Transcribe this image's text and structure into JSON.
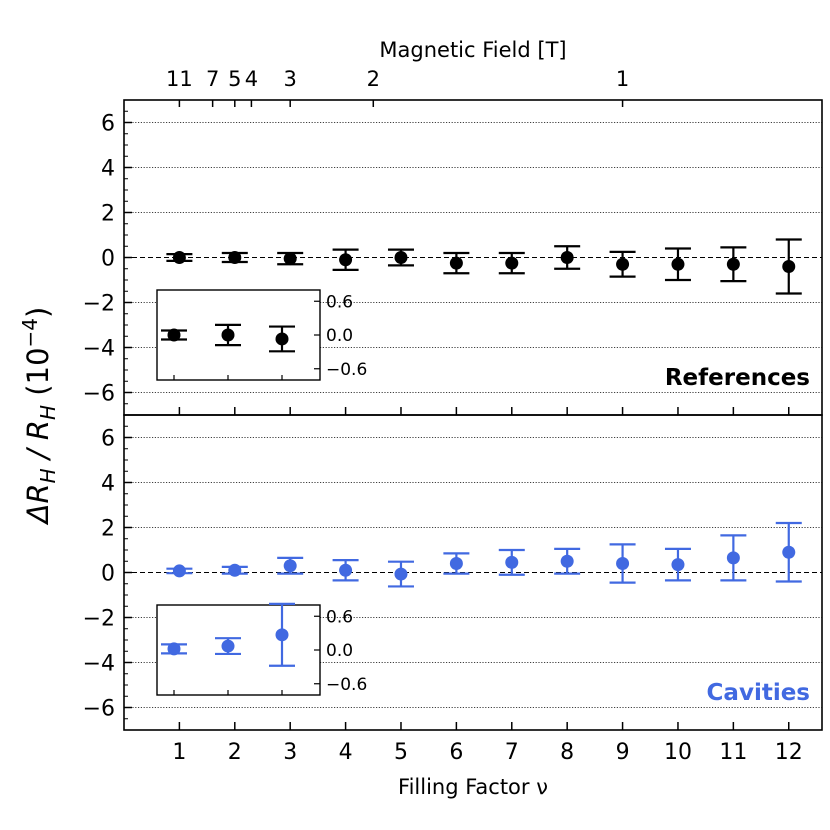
{
  "chart_data": {
    "type": "scatter",
    "top_axis": {
      "label": "Magnetic Field [T]",
      "ticks": [
        {
          "text": "11",
          "nu": 1.0
        },
        {
          "text": "7",
          "nu": 1.6
        },
        {
          "text": "5",
          "nu": 2.0
        },
        {
          "text": "4",
          "nu": 2.3
        },
        {
          "text": "3",
          "nu": 3.0
        },
        {
          "text": "2",
          "nu": 4.5
        },
        {
          "text": "1",
          "nu": 9.0
        }
      ]
    },
    "x_axis": {
      "label": "Filling Factor ν",
      "ticks": [
        "1",
        "2",
        "3",
        "4",
        "5",
        "6",
        "7",
        "8",
        "9",
        "10",
        "11",
        "12"
      ],
      "range": [
        0.0,
        12.6
      ]
    },
    "y_axis": {
      "label_main": "ΔR",
      "label_sub": "H",
      "label_sep": " / R",
      "label_unit": " (10",
      "label_exp": "−4",
      "label_close": ")",
      "range": [
        -7,
        7
      ],
      "ticks": [
        "−6",
        "−4",
        "−2",
        "0",
        "2",
        "4",
        "6"
      ]
    },
    "panels": [
      {
        "label": "References",
        "color": "#000000",
        "x": [
          1,
          2,
          3,
          4,
          5,
          6,
          7,
          8,
          9,
          10,
          11,
          12
        ],
        "y": [
          0.0,
          0.0,
          -0.05,
          -0.1,
          0.0,
          -0.25,
          -0.25,
          0.0,
          -0.3,
          -0.3,
          -0.3,
          -0.4
        ],
        "err": [
          0.15,
          0.2,
          0.25,
          0.45,
          0.35,
          0.45,
          0.45,
          0.5,
          0.55,
          0.7,
          0.75,
          1.2
        ],
        "inset": {
          "x": [
            1,
            2,
            3
          ],
          "y": [
            0.0,
            0.0,
            -0.07
          ],
          "err": [
            0.08,
            0.18,
            0.22
          ],
          "ticks": [
            "0.6",
            "0.0",
            "−0.6"
          ]
        }
      },
      {
        "label": "Cavities",
        "color": "#4169e1",
        "x": [
          1,
          2,
          3,
          4,
          5,
          6,
          7,
          8,
          9,
          10,
          11,
          12
        ],
        "y": [
          0.07,
          0.1,
          0.3,
          0.1,
          -0.07,
          0.4,
          0.45,
          0.5,
          0.4,
          0.35,
          0.65,
          0.9
        ],
        "err": [
          0.1,
          0.15,
          0.35,
          0.45,
          0.55,
          0.45,
          0.55,
          0.55,
          0.85,
          0.7,
          1.0,
          1.3
        ],
        "inset": {
          "x": [
            1,
            2,
            3
          ],
          "y": [
            0.02,
            0.07,
            0.27
          ],
          "err": [
            0.08,
            0.14,
            0.55
          ],
          "ticks": [
            "0.6",
            "0.0",
            "−0.6"
          ]
        }
      }
    ]
  }
}
